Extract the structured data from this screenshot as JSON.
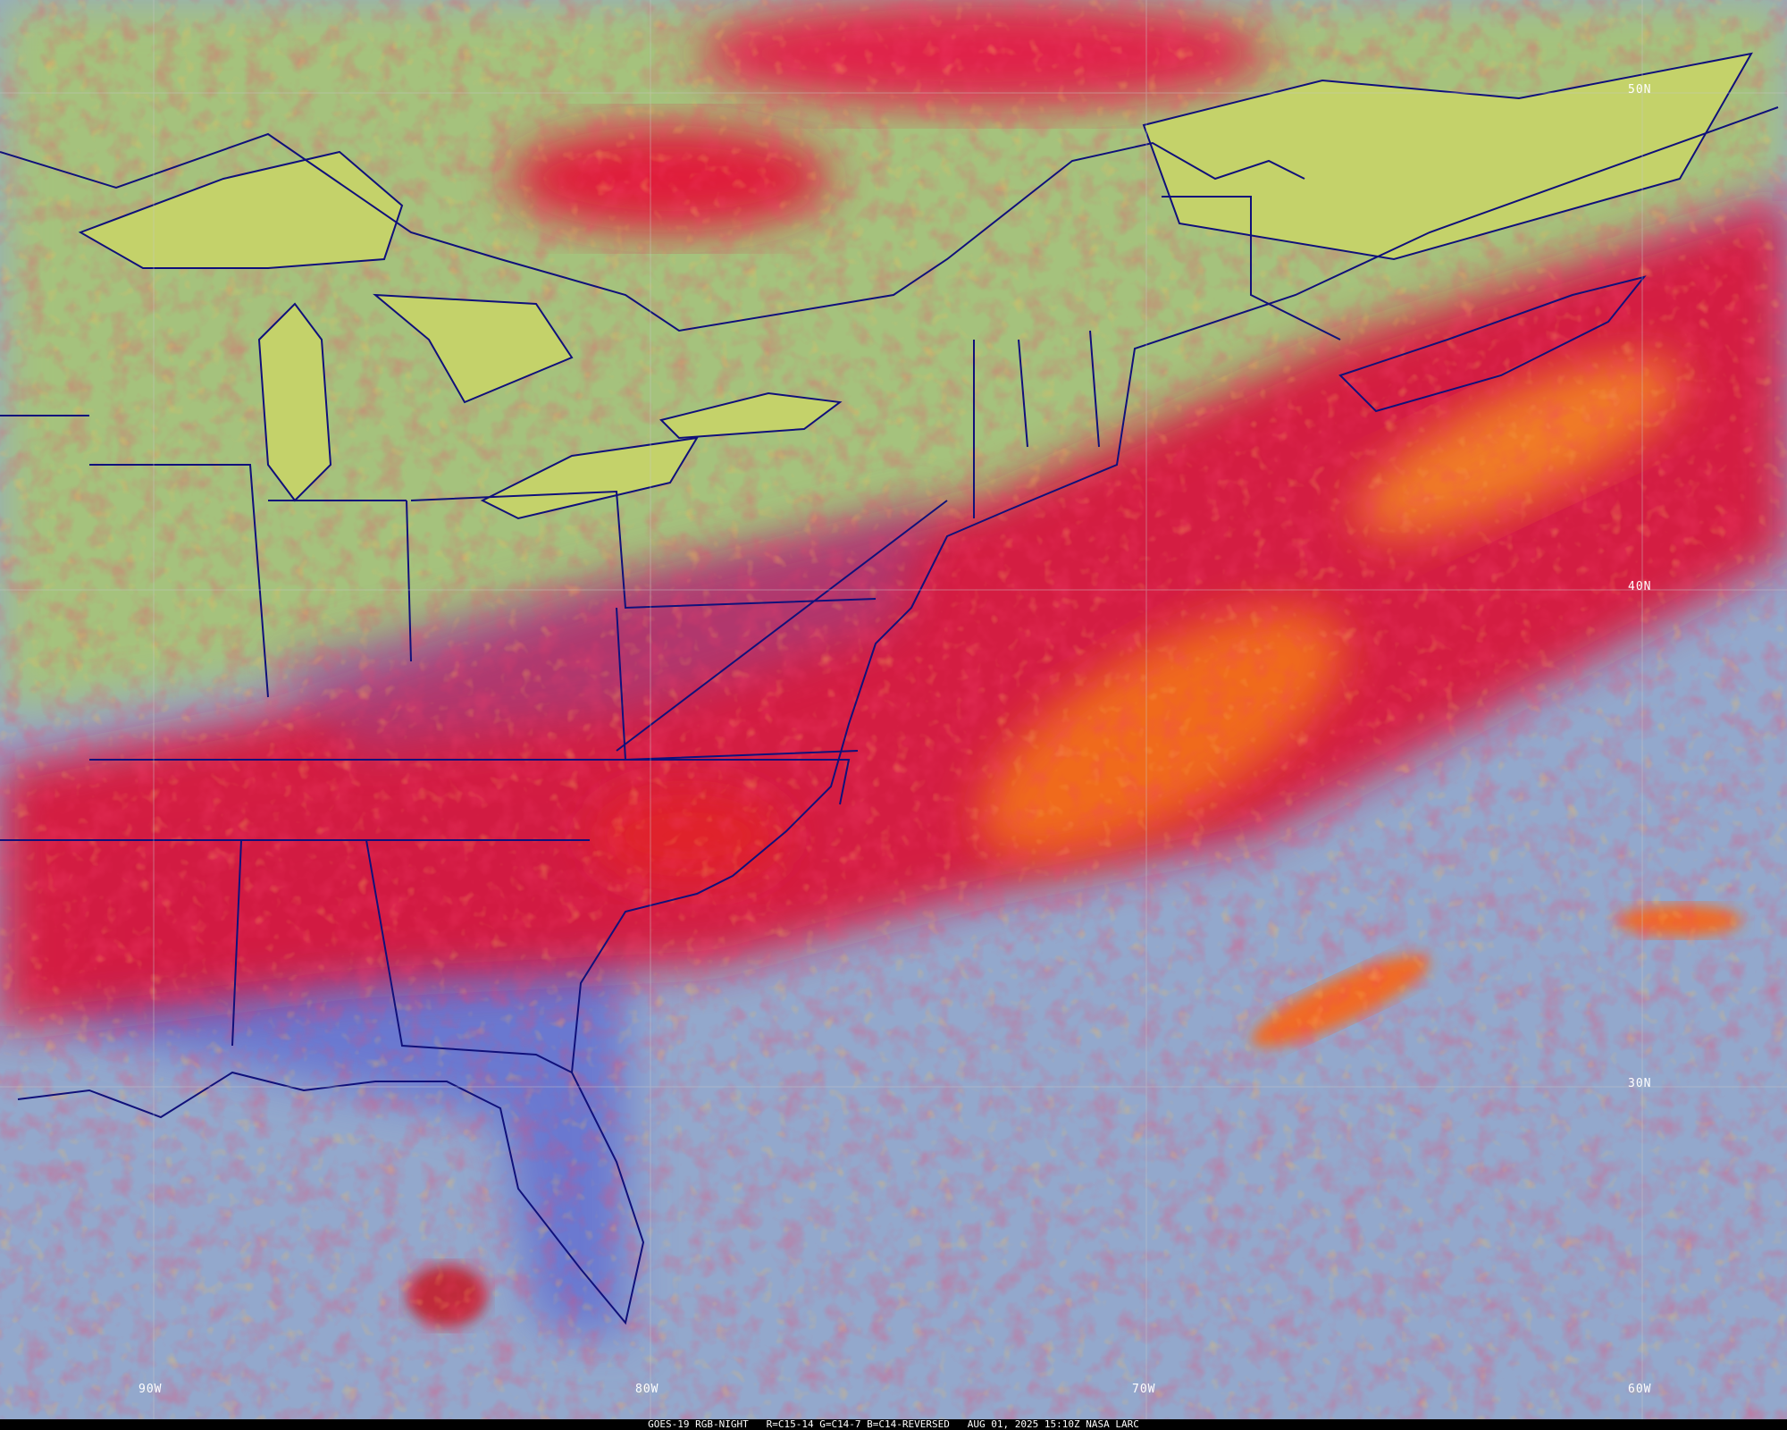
{
  "caption": {
    "satellite": "GOES-19 RGB-NIGHT",
    "channels": "R=C15-14 G=C14-7 B=C14-REVERSED",
    "timestamp": "AUG 01, 2025 15:10Z",
    "source": "NASA LARC"
  },
  "grid_labels": {
    "lat": [
      "50N",
      "40N",
      "30N"
    ],
    "lon": [
      "90W",
      "80W",
      "70W",
      "60W"
    ]
  },
  "colors": {
    "clear_land": "#a8c77a",
    "clear_ocean": "#8fa6c8",
    "high_cloud": "#e0102a",
    "thick_cloud": "#f07a20",
    "boundaries": "#10107a",
    "graticule": "#c8c8c8"
  }
}
